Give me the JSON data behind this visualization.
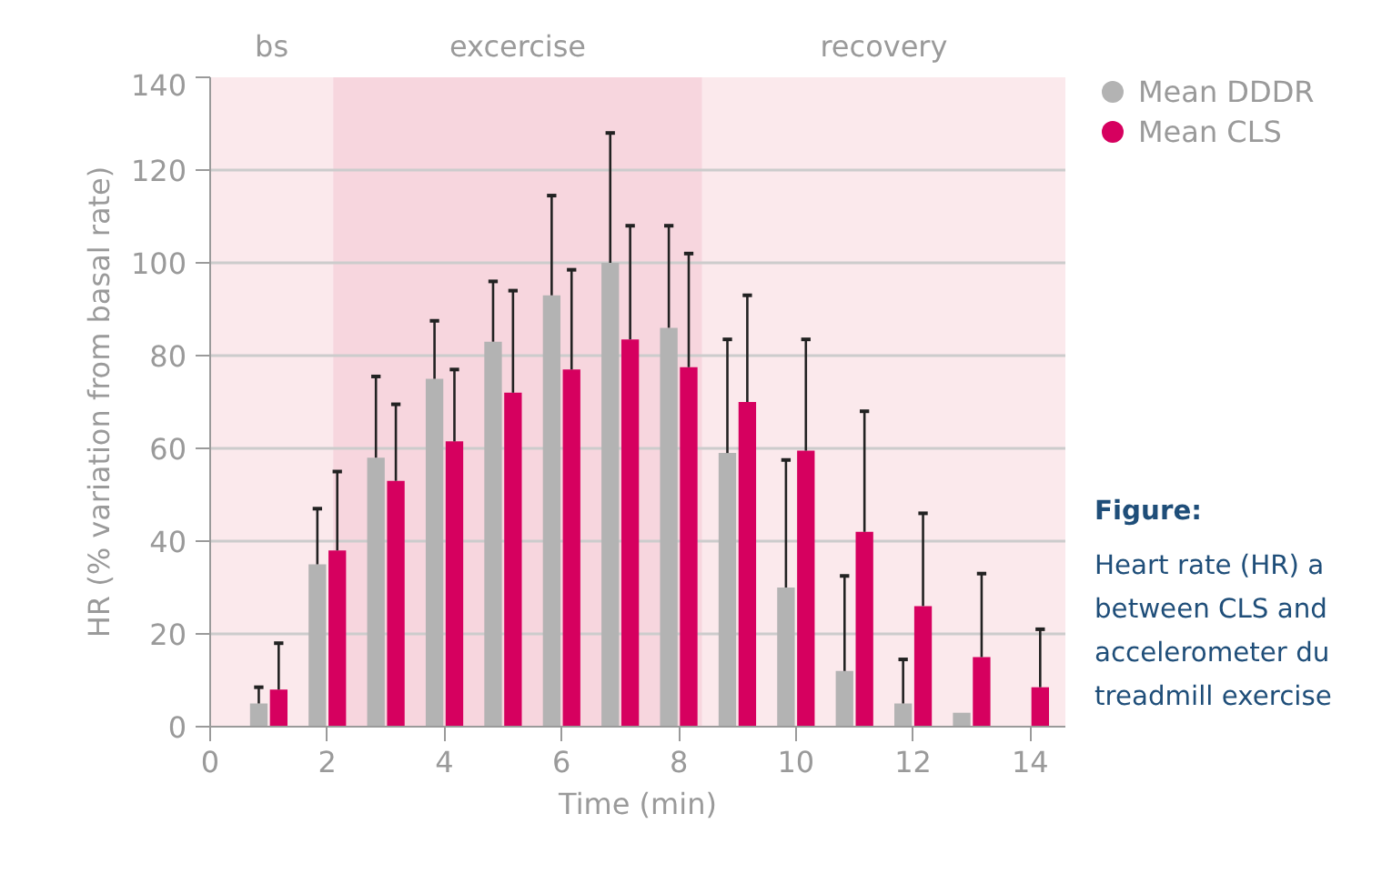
{
  "chart_data": {
    "type": "bar",
    "xlabel": "Time (min)",
    "ylabel": "HR (% variation from basal rate)",
    "x": [
      1,
      2,
      3,
      4,
      5,
      6,
      7,
      8,
      9,
      10,
      11,
      12,
      13,
      14
    ],
    "series": [
      {
        "name": "Mean DDDR",
        "color": "#b3b3b3",
        "values": [
          5,
          35,
          58,
          75,
          83,
          93,
          100,
          86,
          59,
          30,
          12,
          5,
          3,
          null
        ],
        "errors": [
          [
            5,
            8.5
          ],
          [
            35,
            47
          ],
          [
            58,
            75.5
          ],
          [
            75,
            87.5
          ],
          [
            83,
            96
          ],
          [
            93,
            114.5
          ],
          [
            100,
            128
          ],
          [
            86,
            108
          ],
          [
            59,
            83.5
          ],
          [
            30,
            57.5
          ],
          [
            12,
            32.5
          ],
          [
            5,
            14.5
          ],
          null,
          null
        ]
      },
      {
        "name": "Mean CLS",
        "color": "#d6005f",
        "values": [
          8,
          38,
          53,
          61.5,
          72,
          77,
          83.5,
          77.5,
          70,
          59.5,
          42,
          26,
          15,
          8.5
        ],
        "errors": [
          [
            8,
            18
          ],
          [
            38,
            55
          ],
          [
            53,
            69.5
          ],
          [
            61.5,
            77
          ],
          [
            72,
            94
          ],
          [
            77,
            98.5
          ],
          [
            83.5,
            108
          ],
          [
            77.5,
            102
          ],
          [
            70,
            93
          ],
          [
            59.5,
            83.5
          ],
          [
            42,
            68
          ],
          [
            26,
            46
          ],
          [
            15,
            33
          ],
          [
            8.5,
            21
          ]
        ]
      }
    ],
    "xlim": [
      0,
      14.6
    ],
    "ylim": [
      0,
      140
    ],
    "xticks": [
      0,
      2,
      4,
      6,
      8,
      10,
      12,
      14
    ],
    "yticks": [
      0,
      20,
      40,
      60,
      80,
      100,
      120,
      140
    ],
    "grid": "y",
    "legend": "right",
    "bands": [
      {
        "axis": "x",
        "from": 0,
        "to": 2.1,
        "label": "bs",
        "color": "#fbe9ec"
      },
      {
        "axis": "x",
        "from": 2.1,
        "to": 8.4,
        "label": "excercise",
        "color": "#f7d6de"
      },
      {
        "axis": "x",
        "from": 8.4,
        "to": 14.6,
        "label": "recovery",
        "color": "#fbe9ec"
      }
    ],
    "annotations": [
      "Figure:",
      "Heart rate (HR) a",
      "between CLS and",
      "accelerometer du",
      "treadmill exercise"
    ]
  }
}
